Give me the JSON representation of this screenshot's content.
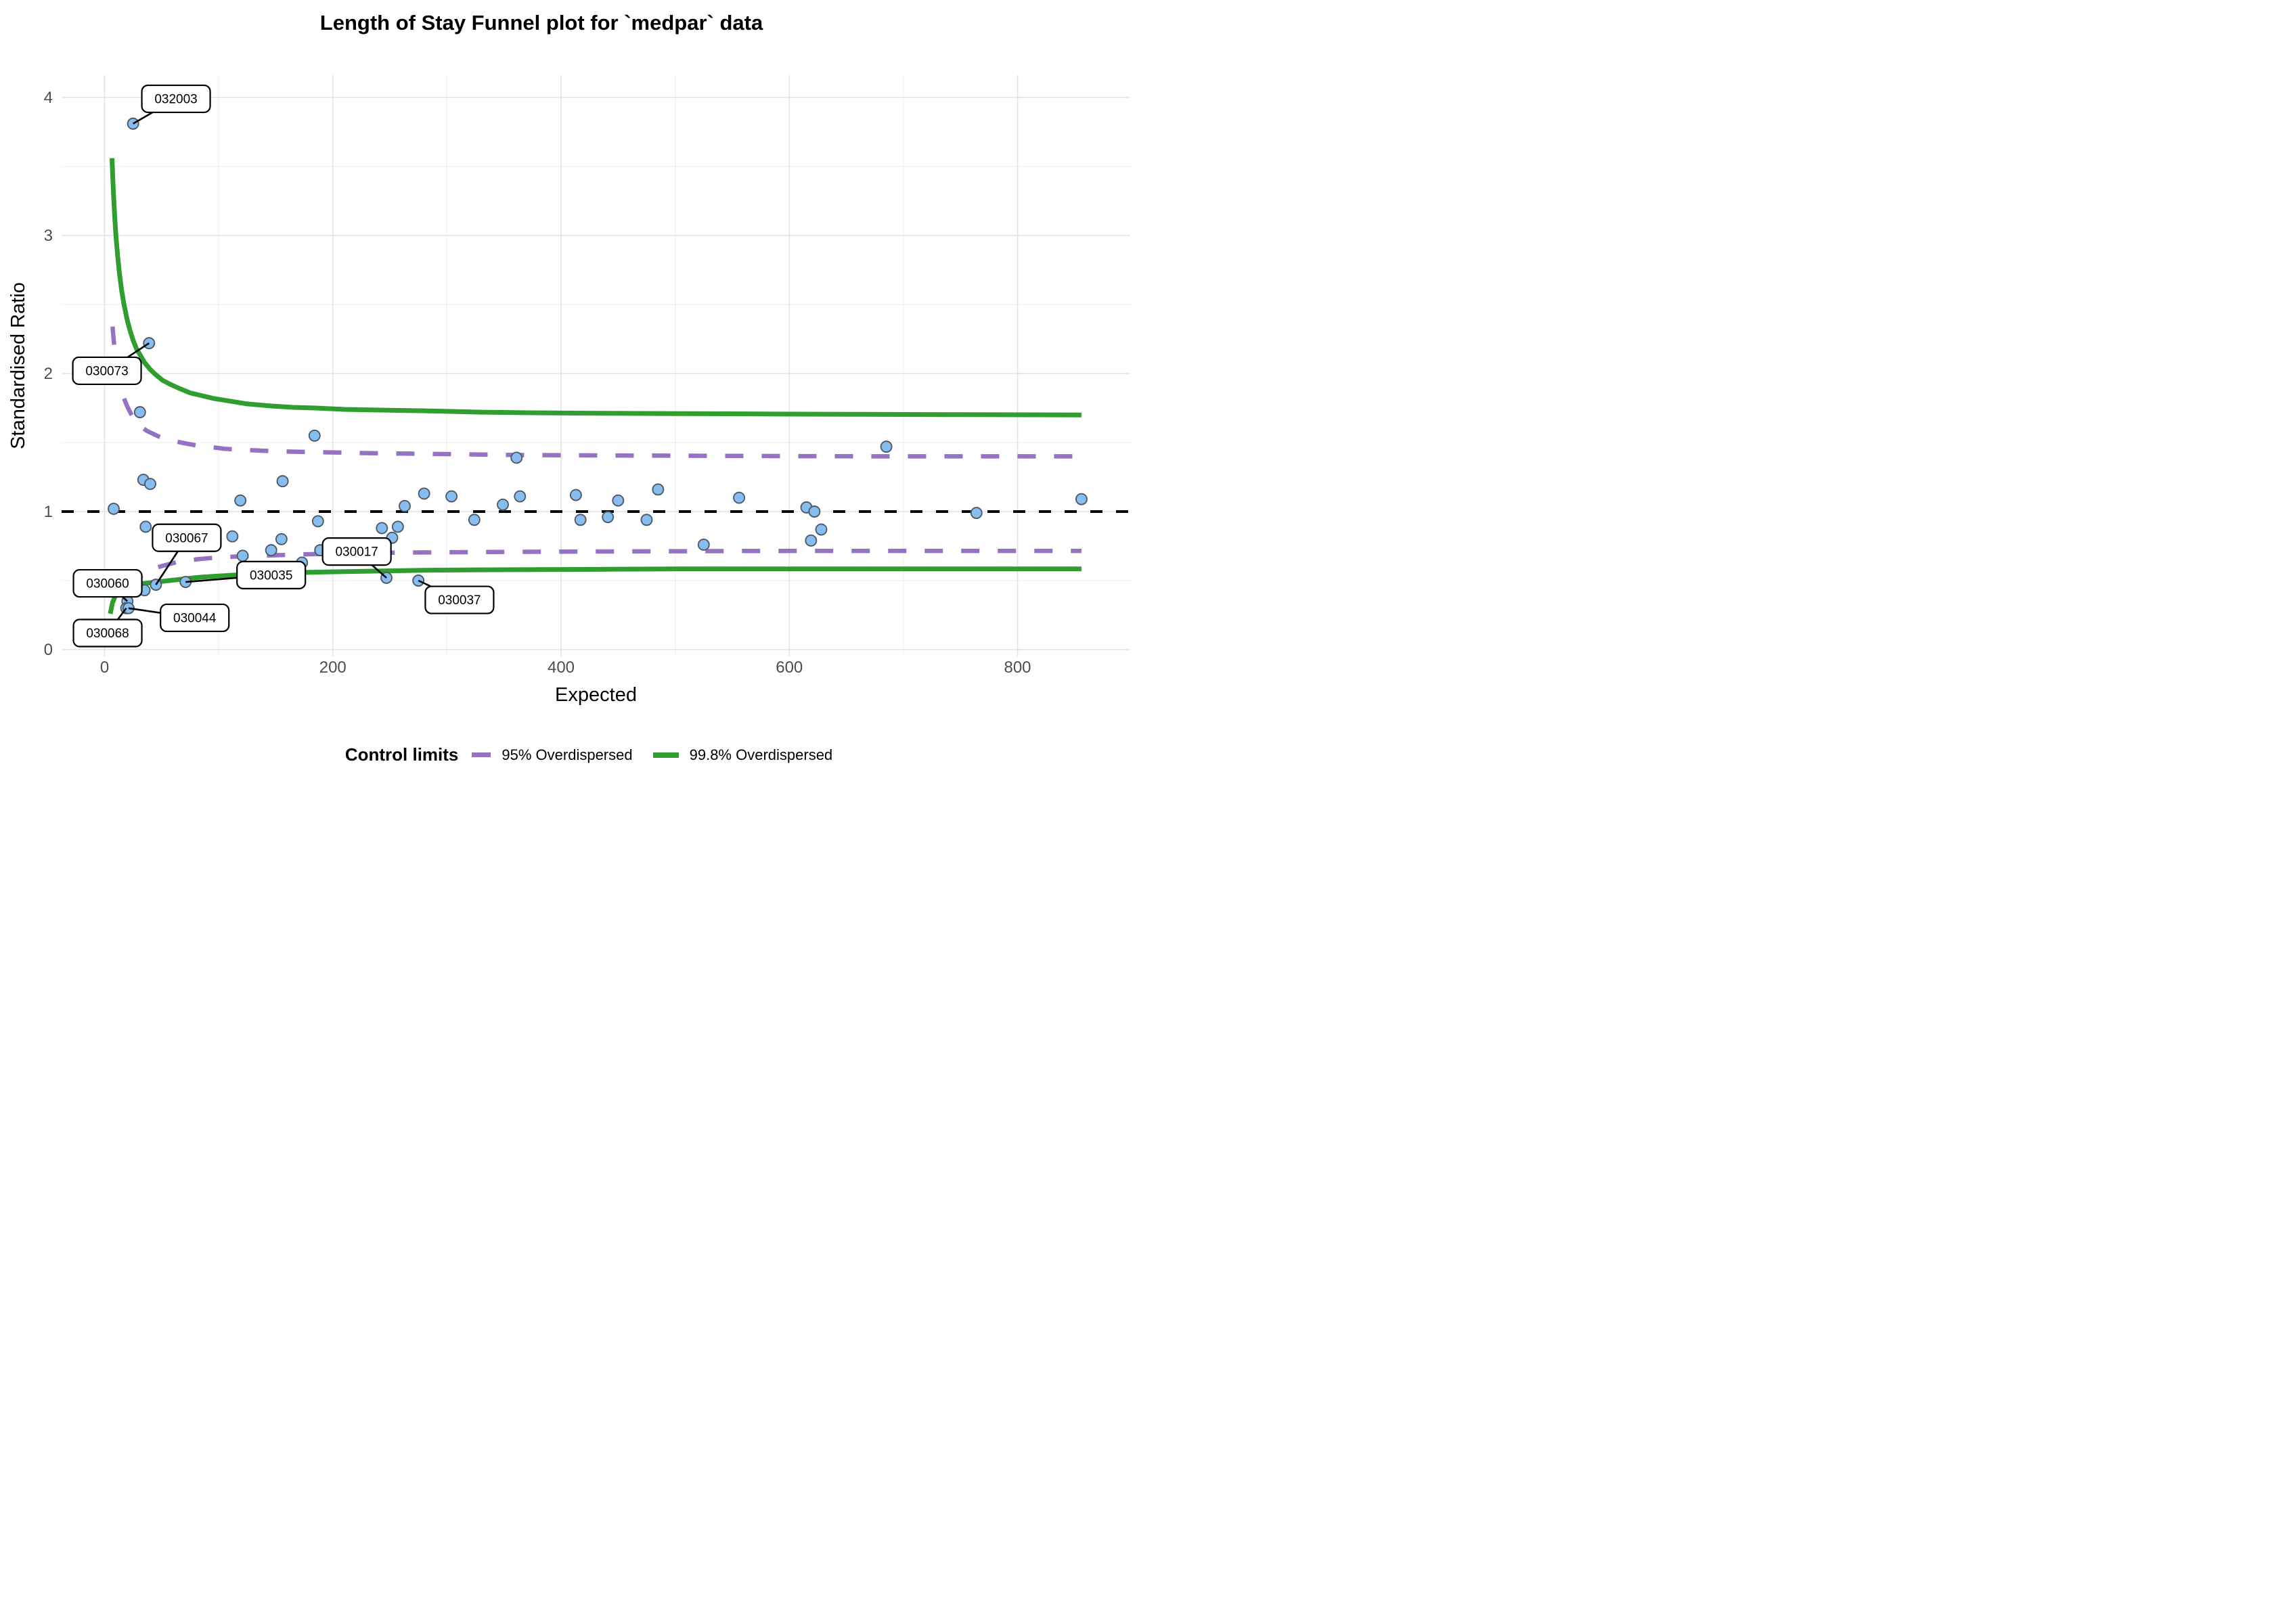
{
  "title": "Length of Stay Funnel plot for `medpar` data",
  "axes": {
    "x": {
      "label": "Expected",
      "ticks": [
        0,
        200,
        400,
        600,
        800
      ],
      "minor": [
        100,
        300,
        500,
        700
      ]
    },
    "y": {
      "label": "Standardised Ratio",
      "ticks": [
        0,
        1,
        2,
        3,
        4
      ],
      "minor": [
        0.5,
        1.5,
        2.5,
        3.5
      ]
    }
  },
  "legend": {
    "title": "Control limits",
    "items": [
      {
        "label": "95% Overdispersed",
        "color": "#9673C2",
        "style": "dashed"
      },
      {
        "label": "99.8% Overdispersed",
        "color": "#2F9E2F",
        "style": "solid"
      }
    ]
  },
  "chart_data": {
    "type": "scatter",
    "title": "Length of Stay Funnel plot for `medpar` data",
    "xlabel": "Expected",
    "ylabel": "Standardised Ratio",
    "xlim": [
      -38,
      899
    ],
    "ylim": [
      -0.05,
      4.16
    ],
    "grid": true,
    "legend_position": "bottom",
    "colors": {
      "point_fill": "#87BEF2",
      "point_stroke": "#4F5A64",
      "limit_95": "#9673C2",
      "limit_998": "#2F9E2F",
      "center_line": "#000000",
      "grid_major": "#E2E2E2",
      "grid_minor": "#EFEFEF",
      "tick_text": "#4D4D4D"
    },
    "center_line": {
      "y": 1,
      "style": "dashed"
    },
    "points": [
      {
        "x": 8,
        "y": 1.02
      },
      {
        "x": 20,
        "y": 0.35,
        "label": "030060"
      },
      {
        "x": 19,
        "y": 0.3,
        "label": "030068"
      },
      {
        "x": 21,
        "y": 0.3,
        "label": "030044"
      },
      {
        "x": 25,
        "y": 3.81,
        "label": "032003"
      },
      {
        "x": 31,
        "y": 1.72
      },
      {
        "x": 34,
        "y": 1.23
      },
      {
        "x": 35,
        "y": 0.43
      },
      {
        "x": 36,
        "y": 0.89
      },
      {
        "x": 39,
        "y": 2.22,
        "label": "030073"
      },
      {
        "x": 40,
        "y": 1.2
      },
      {
        "x": 45,
        "y": 0.47,
        "label": "030067"
      },
      {
        "x": 71,
        "y": 0.49,
        "label": "030035"
      },
      {
        "x": 112,
        "y": 0.82
      },
      {
        "x": 119,
        "y": 1.08
      },
      {
        "x": 121,
        "y": 0.68
      },
      {
        "x": 146,
        "y": 0.72
      },
      {
        "x": 155,
        "y": 0.8
      },
      {
        "x": 156,
        "y": 1.22
      },
      {
        "x": 173,
        "y": 0.63
      },
      {
        "x": 184,
        "y": 1.55
      },
      {
        "x": 187,
        "y": 0.93
      },
      {
        "x": 189,
        "y": 0.72
      },
      {
        "x": 243,
        "y": 0.88
      },
      {
        "x": 247,
        "y": 0.52,
        "label": "030017"
      },
      {
        "x": 252,
        "y": 0.81
      },
      {
        "x": 257,
        "y": 0.89
      },
      {
        "x": 263,
        "y": 1.04
      },
      {
        "x": 275,
        "y": 0.5,
        "label": "030037"
      },
      {
        "x": 280,
        "y": 1.13
      },
      {
        "x": 304,
        "y": 1.11
      },
      {
        "x": 324,
        "y": 0.94
      },
      {
        "x": 349,
        "y": 1.05
      },
      {
        "x": 361,
        "y": 1.39
      },
      {
        "x": 364,
        "y": 1.11
      },
      {
        "x": 413,
        "y": 1.12
      },
      {
        "x": 417,
        "y": 0.94
      },
      {
        "x": 441,
        "y": 0.96
      },
      {
        "x": 450,
        "y": 1.08
      },
      {
        "x": 475,
        "y": 0.94
      },
      {
        "x": 485,
        "y": 1.16
      },
      {
        "x": 525,
        "y": 0.76
      },
      {
        "x": 556,
        "y": 1.1
      },
      {
        "x": 615,
        "y": 1.03
      },
      {
        "x": 622,
        "y": 1.0
      },
      {
        "x": 619,
        "y": 0.79
      },
      {
        "x": 628,
        "y": 0.87
      },
      {
        "x": 685,
        "y": 1.47
      },
      {
        "x": 764,
        "y": 0.99
      },
      {
        "x": 856,
        "y": 1.09
      }
    ],
    "control_limits": [
      {
        "name": "95% Overdispersed",
        "style": "dashed",
        "color": "#9673C2",
        "upper": [
          [
            7,
            2.34
          ],
          [
            8,
            2.24
          ],
          [
            9,
            2.16
          ],
          [
            10,
            2.09
          ],
          [
            11.5,
            2.01
          ],
          [
            13,
            1.95
          ],
          [
            15,
            1.87
          ],
          [
            17,
            1.82
          ],
          [
            20,
            1.76
          ],
          [
            23,
            1.71
          ],
          [
            26,
            1.67
          ],
          [
            29,
            1.64
          ],
          [
            33,
            1.61
          ],
          [
            37,
            1.585
          ],
          [
            42,
            1.565
          ],
          [
            47,
            1.545
          ],
          [
            54,
            1.525
          ],
          [
            61,
            1.51
          ],
          [
            70,
            1.495
          ],
          [
            80,
            1.48
          ],
          [
            92,
            1.468
          ],
          [
            105,
            1.455
          ],
          [
            122,
            1.447
          ],
          [
            140,
            1.44
          ],
          [
            165,
            1.434
          ],
          [
            190,
            1.43
          ],
          [
            225,
            1.424
          ],
          [
            260,
            1.42
          ],
          [
            310,
            1.415
          ],
          [
            360,
            1.41
          ],
          [
            430,
            1.407
          ],
          [
            500,
            1.405
          ],
          [
            590,
            1.402
          ],
          [
            680,
            1.4
          ],
          [
            770,
            1.4
          ],
          [
            856,
            1.4
          ]
        ],
        "lower": [
          [
            22,
            0.44
          ],
          [
            25,
            0.47
          ],
          [
            28,
            0.5
          ],
          [
            31,
            0.525
          ],
          [
            35,
            0.55
          ],
          [
            39,
            0.57
          ],
          [
            44,
            0.59
          ],
          [
            50,
            0.605
          ],
          [
            57,
            0.62
          ],
          [
            64,
            0.635
          ],
          [
            73,
            0.645
          ],
          [
            82,
            0.655
          ],
          [
            93,
            0.663
          ],
          [
            105,
            0.67
          ],
          [
            120,
            0.676
          ],
          [
            135,
            0.68
          ],
          [
            155,
            0.685
          ],
          [
            175,
            0.69
          ],
          [
            200,
            0.695
          ],
          [
            230,
            0.7
          ],
          [
            265,
            0.703
          ],
          [
            300,
            0.705
          ],
          [
            350,
            0.708
          ],
          [
            400,
            0.71
          ],
          [
            475,
            0.712
          ],
          [
            550,
            0.714
          ],
          [
            625,
            0.715
          ],
          [
            700,
            0.715
          ],
          [
            780,
            0.715
          ],
          [
            856,
            0.715
          ]
        ]
      },
      {
        "name": "99.8% Overdispersed",
        "style": "solid",
        "color": "#2F9E2F",
        "upper": [
          [
            6.5,
            3.56
          ],
          [
            7.2,
            3.42
          ],
          [
            8,
            3.27
          ],
          [
            9,
            3.12
          ],
          [
            10,
            2.99
          ],
          [
            11.5,
            2.85
          ],
          [
            13,
            2.73
          ],
          [
            15,
            2.6
          ],
          [
            17,
            2.5
          ],
          [
            19.5,
            2.4
          ],
          [
            22,
            2.32
          ],
          [
            25,
            2.24
          ],
          [
            28,
            2.18
          ],
          [
            31.5,
            2.13
          ],
          [
            35,
            2.08
          ],
          [
            40,
            2.03
          ],
          [
            45,
            1.99
          ],
          [
            51,
            1.95
          ],
          [
            58,
            1.92
          ],
          [
            66,
            1.89
          ],
          [
            75,
            1.86
          ],
          [
            85,
            1.84
          ],
          [
            95,
            1.82
          ],
          [
            110,
            1.8
          ],
          [
            125,
            1.78
          ],
          [
            145,
            1.765
          ],
          [
            165,
            1.755
          ],
          [
            185,
            1.75
          ],
          [
            210,
            1.74
          ],
          [
            245,
            1.735
          ],
          [
            280,
            1.73
          ],
          [
            330,
            1.72
          ],
          [
            380,
            1.715
          ],
          [
            440,
            1.712
          ],
          [
            500,
            1.71
          ],
          [
            575,
            1.707
          ],
          [
            650,
            1.705
          ],
          [
            750,
            1.702
          ],
          [
            856,
            1.7
          ]
        ],
        "lower": [
          [
            5,
            0.26
          ],
          [
            6,
            0.3
          ],
          [
            7,
            0.34
          ],
          [
            8.5,
            0.37
          ],
          [
            10,
            0.4
          ],
          [
            12,
            0.42
          ],
          [
            14,
            0.435
          ],
          [
            16.5,
            0.446
          ],
          [
            19,
            0.455
          ],
          [
            22,
            0.463
          ],
          [
            26,
            0.47
          ],
          [
            30,
            0.475
          ],
          [
            35,
            0.48
          ],
          [
            40,
            0.485
          ],
          [
            46,
            0.49
          ],
          [
            53,
            0.497
          ],
          [
            62,
            0.505
          ],
          [
            73,
            0.515
          ],
          [
            85,
            0.525
          ],
          [
            100,
            0.533
          ],
          [
            115,
            0.54
          ],
          [
            135,
            0.548
          ],
          [
            155,
            0.555
          ],
          [
            180,
            0.56
          ],
          [
            210,
            0.565
          ],
          [
            245,
            0.57
          ],
          [
            280,
            0.575
          ],
          [
            330,
            0.578
          ],
          [
            380,
            0.58
          ],
          [
            440,
            0.582
          ],
          [
            500,
            0.585
          ],
          [
            575,
            0.585
          ],
          [
            650,
            0.585
          ],
          [
            750,
            0.585
          ],
          [
            856,
            0.585
          ]
        ]
      }
    ],
    "annotations": [
      {
        "text": "032003",
        "point": [
          25,
          3.81
        ],
        "box": [
          62.6,
          3.99
        ]
      },
      {
        "text": "030073",
        "point": [
          39,
          2.22
        ],
        "box": [
          2.1,
          2.02
        ]
      },
      {
        "text": "030067",
        "point": [
          45,
          0.47
        ],
        "box": [
          72,
          0.81
        ]
      },
      {
        "text": "030060",
        "point": [
          20,
          0.35
        ],
        "box": [
          2.7,
          0.48
        ]
      },
      {
        "text": "030068",
        "point": [
          19,
          0.3
        ],
        "box": [
          2.7,
          0.12
        ]
      },
      {
        "text": "030044",
        "point": [
          21,
          0.3
        ],
        "box": [
          79,
          0.23
        ]
      },
      {
        "text": "030035",
        "point": [
          71,
          0.49
        ],
        "box": [
          146,
          0.54
        ]
      },
      {
        "text": "030017",
        "point": [
          247,
          0.52
        ],
        "box": [
          221,
          0.71
        ]
      },
      {
        "text": "030037",
        "point": [
          275,
          0.5
        ],
        "box": [
          311,
          0.36
        ]
      }
    ]
  }
}
